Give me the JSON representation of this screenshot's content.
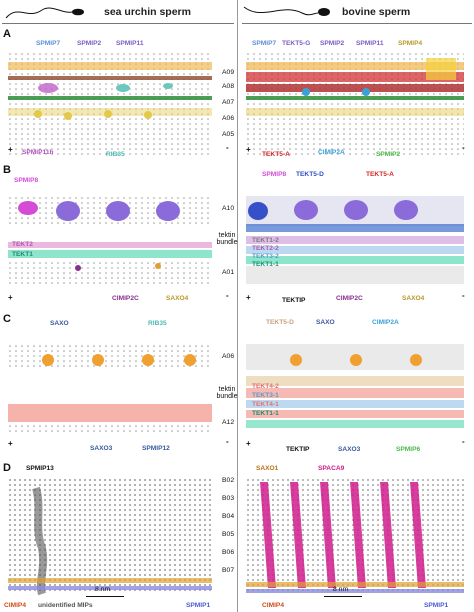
{
  "header": {
    "left_title": "sea urchin sperm",
    "right_title": "bovine sperm"
  },
  "panels": [
    {
      "letter": "A",
      "rows": [
        "A09",
        "A08",
        "A07",
        "A06",
        "A05"
      ],
      "left_labels": [
        "SPMIP7",
        "SPMIP2",
        "SPMIP11",
        "SPMIP11h",
        "RIB35"
      ],
      "right_labels": [
        "SPMIP7",
        "TEKT5-G",
        "SPMIP2",
        "SPMIP11",
        "SPMIP4",
        "TEKT5-A",
        "CIMIP2A",
        "SPMIP2"
      ],
      "plus": "+",
      "minus": "-"
    },
    {
      "letter": "B",
      "rows": [
        "A10",
        "tektin\nbundle",
        "A01"
      ],
      "left_labels": [
        "SPMIP8",
        "TEKT2",
        "TEKT1",
        "CIMIP2C",
        "SAXO4"
      ],
      "right_labels": [
        "SPMIP8",
        "TEKT5-D",
        "TEKT5-A",
        "TEKT1-2",
        "TEKT2-2",
        "TEKT3-2",
        "TEKT1-1",
        "TEKTIP",
        "CIMIP2C",
        "SAXO4"
      ],
      "plus": "+",
      "minus": "-"
    },
    {
      "letter": "C",
      "rows": [
        "A06",
        "tektin\nbundle",
        "A12"
      ],
      "left_labels": [
        "SAXO",
        "RIB35",
        "SAXO3",
        "SPMIP12"
      ],
      "right_labels": [
        "TEKT5-D",
        "SAXO",
        "CIMIP2A",
        "TEKT4-2",
        "TEKT3-1",
        "TEKT4-1",
        "TEKT1-1",
        "TEKTIP",
        "SAXO3",
        "SPMIP6"
      ],
      "plus": "+",
      "minus": "-"
    },
    {
      "letter": "D",
      "rows": [
        "B02",
        "B03",
        "B04",
        "B05",
        "B06",
        "B07"
      ],
      "left_labels": [
        "SPMIP13",
        "CIMIP4",
        "unidentified MIPs",
        "SPMIP1"
      ],
      "right_labels": [
        "SAXO1",
        "SPACA9",
        "CIMIP4",
        "SPMIP1"
      ],
      "scale": "8 nm"
    }
  ]
}
